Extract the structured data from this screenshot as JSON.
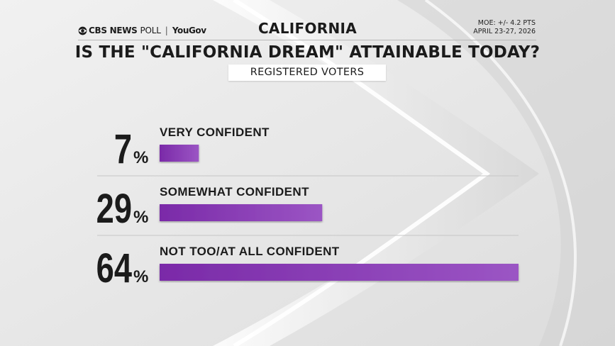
{
  "header": {
    "brand_network": "CBS NEWS",
    "brand_poll": "POLL",
    "brand_separator": "|",
    "brand_partner": "YouGov",
    "region": "CALIFORNIA",
    "moe": "MOE: +/- 4.2 PTS",
    "dates": "APRIL 23-27, 2026",
    "question": "IS THE \"CALIFORNIA DREAM\" ATTAINABLE TODAY?",
    "subgroup": "REGISTERED VOTERS"
  },
  "colors": {
    "bar_dark": "#7a2aa8",
    "bar_light": "#9b55c4",
    "text": "#1b1b1b",
    "divider": "#c6c6c6"
  },
  "icons": {
    "brand": "eye-icon"
  },
  "chart_data": {
    "type": "bar",
    "orientation": "horizontal",
    "title": "IS THE \"CALIFORNIA DREAM\" ATTAINABLE TODAY?",
    "subtitle": "REGISTERED VOTERS",
    "categories": [
      "VERY CONFIDENT",
      "SOMEWHAT CONFIDENT",
      "NOT TOO/AT ALL CONFIDENT"
    ],
    "values": [
      7,
      29,
      64
    ],
    "unit": "%",
    "xlim": [
      0,
      64
    ],
    "xlabel": "",
    "ylabel": "",
    "grid": false
  }
}
